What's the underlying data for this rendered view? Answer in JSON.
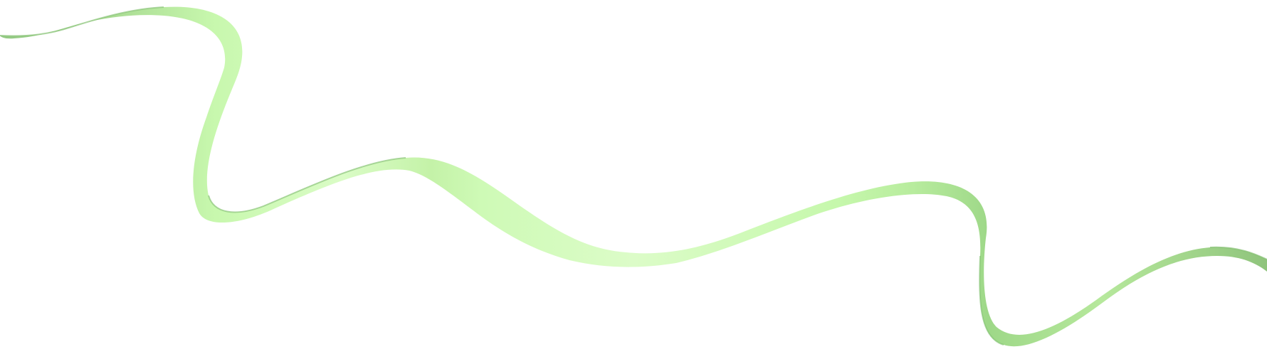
{
  "graphic": {
    "name": "decorative-ribbon",
    "colors": {
      "light": "#d8fcc0",
      "mid": "#c4f5a8",
      "dark": "#92c882",
      "edge": "#8cc47a",
      "background": "#ffffff"
    }
  }
}
